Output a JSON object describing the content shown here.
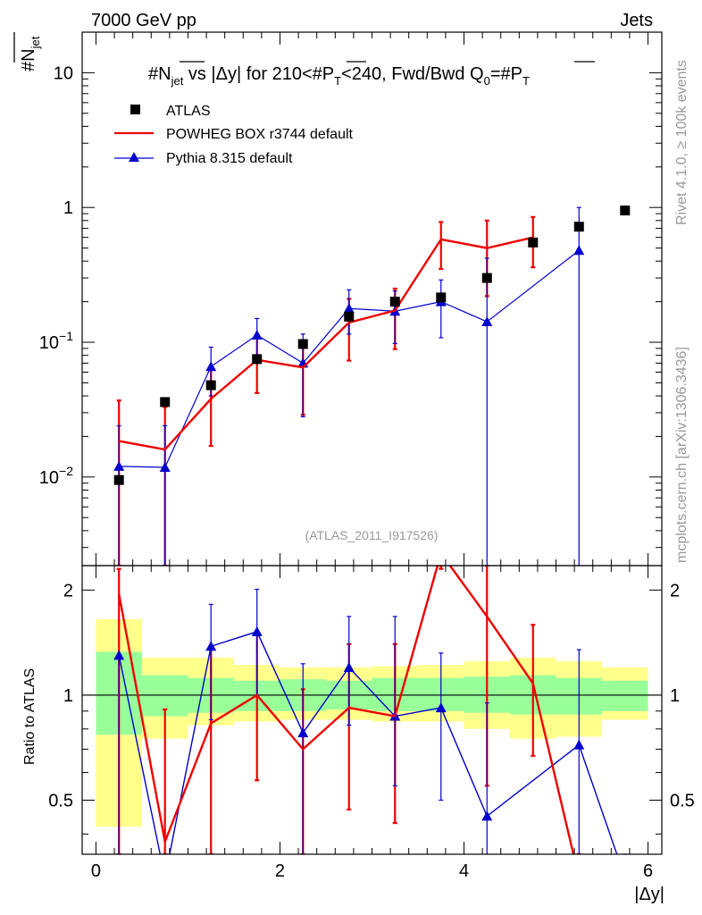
{
  "header": {
    "left": "7000 GeV pp",
    "right": "Jets"
  },
  "side_labels": {
    "rivet": "Rivet 4.1.0, ≥ 100k events",
    "mcplots": "mcplots.cern.ch [arXiv:1306.3436]"
  },
  "chart_data": {
    "type": "scatter",
    "title_parts": {
      "a": "#N",
      "a_sub": "jet",
      "b": " vs |Δy|  for 210<#P",
      "b_sub": "T",
      "c": "<240, Fwd/Bwd Q",
      "c_sub": "0",
      "d": "=#P",
      "d_sub": "T"
    },
    "ylabel_main": {
      "text": "#N",
      "sub": "jet"
    },
    "ylabel_ratio": "Ratio to ATLAS",
    "xlabel": "|Δy|",
    "watermark": "(ATLAS_2011_I917526)",
    "xlim": [
      -0.15,
      6.15
    ],
    "ylim_main": [
      0.0022,
      20
    ],
    "ylim_ratio": [
      0.35,
      2.35
    ],
    "x_ticks": [
      "0",
      "2",
      "4",
      "6"
    ],
    "y_ticks_main": [
      {
        "base": "10",
        "exp": "−2",
        "value": 0.01
      },
      {
        "base": "10",
        "exp": "−1",
        "value": 0.1
      },
      {
        "base": "1",
        "exp": "",
        "value": 1
      },
      {
        "base": "10",
        "exp": "",
        "value": 10
      }
    ],
    "y_ticks_ratio": [
      "0.5",
      "1",
      "2"
    ],
    "legend": [
      {
        "name": "ATLAS",
        "color": "#000000",
        "marker": "square"
      },
      {
        "name": "POWHEG BOX r3744 default",
        "color": "#ee0000",
        "marker": "line"
      },
      {
        "name": "Pythia 8.315 default",
        "color": "#0000cc",
        "marker": "triangle"
      }
    ],
    "bins": [
      [
        0,
        0.5
      ],
      [
        0.5,
        1
      ],
      [
        1,
        1.5
      ],
      [
        1.5,
        2
      ],
      [
        2,
        2.5
      ],
      [
        2.5,
        3
      ],
      [
        3,
        3.5
      ],
      [
        3.5,
        4
      ],
      [
        4,
        4.5
      ],
      [
        4.5,
        5
      ],
      [
        5,
        5.5
      ],
      [
        5.5,
        6
      ]
    ],
    "atlas": {
      "x": [
        0.25,
        0.75,
        1.25,
        1.75,
        2.25,
        2.75,
        3.25,
        3.75,
        4.25,
        4.75,
        5.25,
        5.75
      ],
      "y": [
        0.0095,
        0.036,
        0.048,
        0.075,
        0.097,
        0.155,
        0.2,
        0.215,
        0.3,
        0.55,
        0.72,
        0.95
      ],
      "band_green": [
        [
          0.77,
          1.33
        ],
        [
          0.87,
          1.14
        ],
        [
          0.89,
          1.12
        ],
        [
          0.9,
          1.1
        ],
        [
          0.9,
          1.11
        ],
        [
          0.91,
          1.1
        ],
        [
          0.9,
          1.12
        ],
        [
          0.9,
          1.12
        ],
        [
          0.89,
          1.13
        ],
        [
          0.88,
          1.14
        ],
        [
          0.88,
          1.12
        ],
        [
          0.9,
          1.1
        ]
      ],
      "band_yellow": [
        [
          0.42,
          1.65
        ],
        [
          0.75,
          1.28
        ],
        [
          0.82,
          1.28
        ],
        [
          0.84,
          1.22
        ],
        [
          0.85,
          1.2
        ],
        [
          0.85,
          1.2
        ],
        [
          0.84,
          1.21
        ],
        [
          0.84,
          1.22
        ],
        [
          0.8,
          1.25
        ],
        [
          0.75,
          1.28
        ],
        [
          0.76,
          1.25
        ],
        [
          0.85,
          1.2
        ]
      ]
    },
    "powheg": {
      "x": [
        0.25,
        0.75,
        1.25,
        1.75,
        2.25,
        2.75,
        3.25,
        3.75,
        4.25,
        4.75
      ],
      "y": [
        0.0185,
        0.016,
        0.038,
        0.074,
        0.065,
        0.14,
        0.172,
        0.58,
        0.5,
        0.6
      ],
      "err_lo": [
        0.0022,
        0.0022,
        0.017,
        0.042,
        0.029,
        0.073,
        0.089,
        0.35,
        0.22,
        0.36
      ],
      "err_hi": [
        0.037,
        0.033,
        0.065,
        0.11,
        0.103,
        0.21,
        0.25,
        0.78,
        0.8,
        0.85
      ],
      "ratio": {
        "x": [
          0.25,
          0.75,
          1.25,
          1.75,
          2.25,
          2.75,
          3.25,
          3.75,
          4.25,
          4.75,
          5.25
        ],
        "y": [
          1.95,
          0.38,
          0.83,
          1.0,
          0.7,
          0.92,
          0.87,
          2.55,
          1.68,
          1.08,
          0.3
        ],
        "err_lo": [
          0.3,
          0.3,
          0.3,
          0.57,
          0.3,
          0.47,
          0.43,
          2.3,
          0.55,
          0.67,
          0.3
        ],
        "err_hi": [
          2.3,
          0.91,
          1.38,
          1.52,
          1.04,
          1.4,
          1.4,
          2.4,
          2.4,
          1.59,
          0.3
        ]
      }
    },
    "pythia": {
      "x": [
        0.25,
        0.75,
        1.25,
        1.75,
        2.25,
        2.75,
        3.25,
        3.75,
        4.25,
        5.25
      ],
      "y": [
        0.012,
        0.0118,
        0.066,
        0.113,
        0.07,
        0.178,
        0.17,
        0.2,
        0.142,
        0.48
      ],
      "err_lo": [
        0.0022,
        0.0022,
        0.04,
        0.07,
        0.028,
        0.115,
        0.098,
        0.108,
        0.0022,
        0.0022
      ],
      "err_hi": [
        0.024,
        0.024,
        0.092,
        0.15,
        0.115,
        0.245,
        0.24,
        0.29,
        0.42,
        1.0
      ],
      "ratio": {
        "x": [
          0.25,
          0.75,
          1.25,
          1.75,
          2.25,
          2.75,
          3.25,
          3.75,
          4.25,
          5.25,
          5.75
        ],
        "y": [
          1.3,
          0.3,
          1.38,
          1.52,
          0.78,
          1.2,
          0.87,
          0.92,
          0.45,
          0.72,
          0.3
        ],
        "err_lo": [
          0.3,
          0.3,
          0.85,
          1.0,
          0.3,
          0.82,
          0.55,
          0.5,
          0.3,
          0.3,
          0.3
        ],
        "err_hi": [
          1.3,
          0.3,
          1.82,
          2.01,
          1.23,
          1.68,
          1.68,
          1.32,
          0.95,
          1.35,
          0.3
        ]
      }
    }
  }
}
